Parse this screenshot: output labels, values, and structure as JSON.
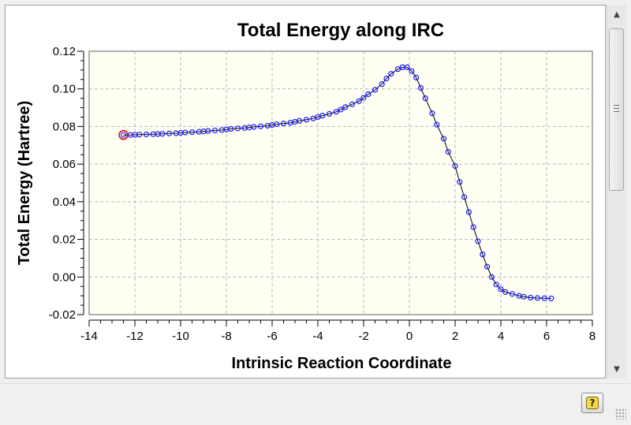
{
  "window": {
    "help_icon_glyph": "?",
    "scroll_up_glyph": "▲",
    "scroll_down_glyph": "▼"
  },
  "colors": {
    "plot_background": "#fffff4",
    "marker": "#1a1aff",
    "current_point_marker": "#e00000",
    "line": "#000000",
    "grid": "#b8b8b8"
  },
  "chart_data": {
    "type": "line",
    "title": "Total Energy along IRC",
    "xlabel": "Intrinsic Reaction Coordinate",
    "ylabel": "Total Energy (Hartree)",
    "xlim": [
      -14,
      8
    ],
    "ylim": [
      -0.02,
      0.12
    ],
    "xticks": [
      -14,
      -12,
      -10,
      -8,
      -6,
      -4,
      -2,
      0,
      2,
      4,
      6,
      8
    ],
    "xtick_labels": [
      "-14",
      "-12",
      "-10",
      "-8",
      "-6",
      "-4",
      "-2",
      "0",
      "2",
      "4",
      "6",
      "8"
    ],
    "yticks": [
      -0.02,
      0.0,
      0.02,
      0.04,
      0.06,
      0.08,
      0.1,
      0.12
    ],
    "ytick_labels": [
      "-0.02",
      "0.00",
      "0.02",
      "0.04",
      "0.06",
      "0.08",
      "0.10",
      "0.12"
    ],
    "grid": true,
    "current_point": {
      "x": -12.5,
      "y": 0.0755
    },
    "x": [
      -12.5,
      -12.2,
      -12.0,
      -11.8,
      -11.5,
      -11.2,
      -11.0,
      -10.8,
      -10.5,
      -10.2,
      -10.0,
      -9.8,
      -9.5,
      -9.2,
      -9.0,
      -8.8,
      -8.5,
      -8.2,
      -8.0,
      -7.8,
      -7.5,
      -7.2,
      -7.0,
      -6.8,
      -6.5,
      -6.2,
      -6.0,
      -5.8,
      -5.5,
      -5.2,
      -5.0,
      -4.8,
      -4.5,
      -4.2,
      -4.0,
      -3.8,
      -3.5,
      -3.2,
      -3.0,
      -2.8,
      -2.5,
      -2.2,
      -2.0,
      -1.8,
      -1.5,
      -1.2,
      -1.0,
      -0.8,
      -0.5,
      -0.3,
      -0.1,
      0.1,
      0.3,
      0.5,
      0.7,
      1.0,
      1.2,
      1.5,
      1.7,
      2.0,
      2.2,
      2.4,
      2.6,
      2.8,
      3.0,
      3.2,
      3.4,
      3.6,
      3.8,
      4.0,
      4.2,
      4.5,
      4.8,
      5.0,
      5.3,
      5.6,
      5.9,
      6.2
    ],
    "y": [
      0.0755,
      0.0755,
      0.0756,
      0.0757,
      0.0758,
      0.0759,
      0.076,
      0.0761,
      0.0763,
      0.0764,
      0.0766,
      0.0768,
      0.077,
      0.0772,
      0.0774,
      0.0776,
      0.0779,
      0.0781,
      0.0784,
      0.0787,
      0.079,
      0.0792,
      0.0795,
      0.0798,
      0.0801,
      0.0804,
      0.0808,
      0.0812,
      0.0816,
      0.082,
      0.0825,
      0.083,
      0.0836,
      0.0843,
      0.085,
      0.0858,
      0.0867,
      0.0878,
      0.089,
      0.0903,
      0.0918,
      0.0935,
      0.0953,
      0.0972,
      0.0995,
      0.1025,
      0.1055,
      0.108,
      0.1105,
      0.1115,
      0.1115,
      0.1095,
      0.106,
      0.1005,
      0.095,
      0.087,
      0.081,
      0.0735,
      0.0665,
      0.059,
      0.0505,
      0.0425,
      0.0345,
      0.0265,
      0.019,
      0.012,
      0.0055,
      0.0,
      -0.004,
      -0.0065,
      -0.008,
      -0.009,
      -0.01,
      -0.0105,
      -0.011,
      -0.0112,
      -0.0113,
      -0.0114
    ]
  }
}
